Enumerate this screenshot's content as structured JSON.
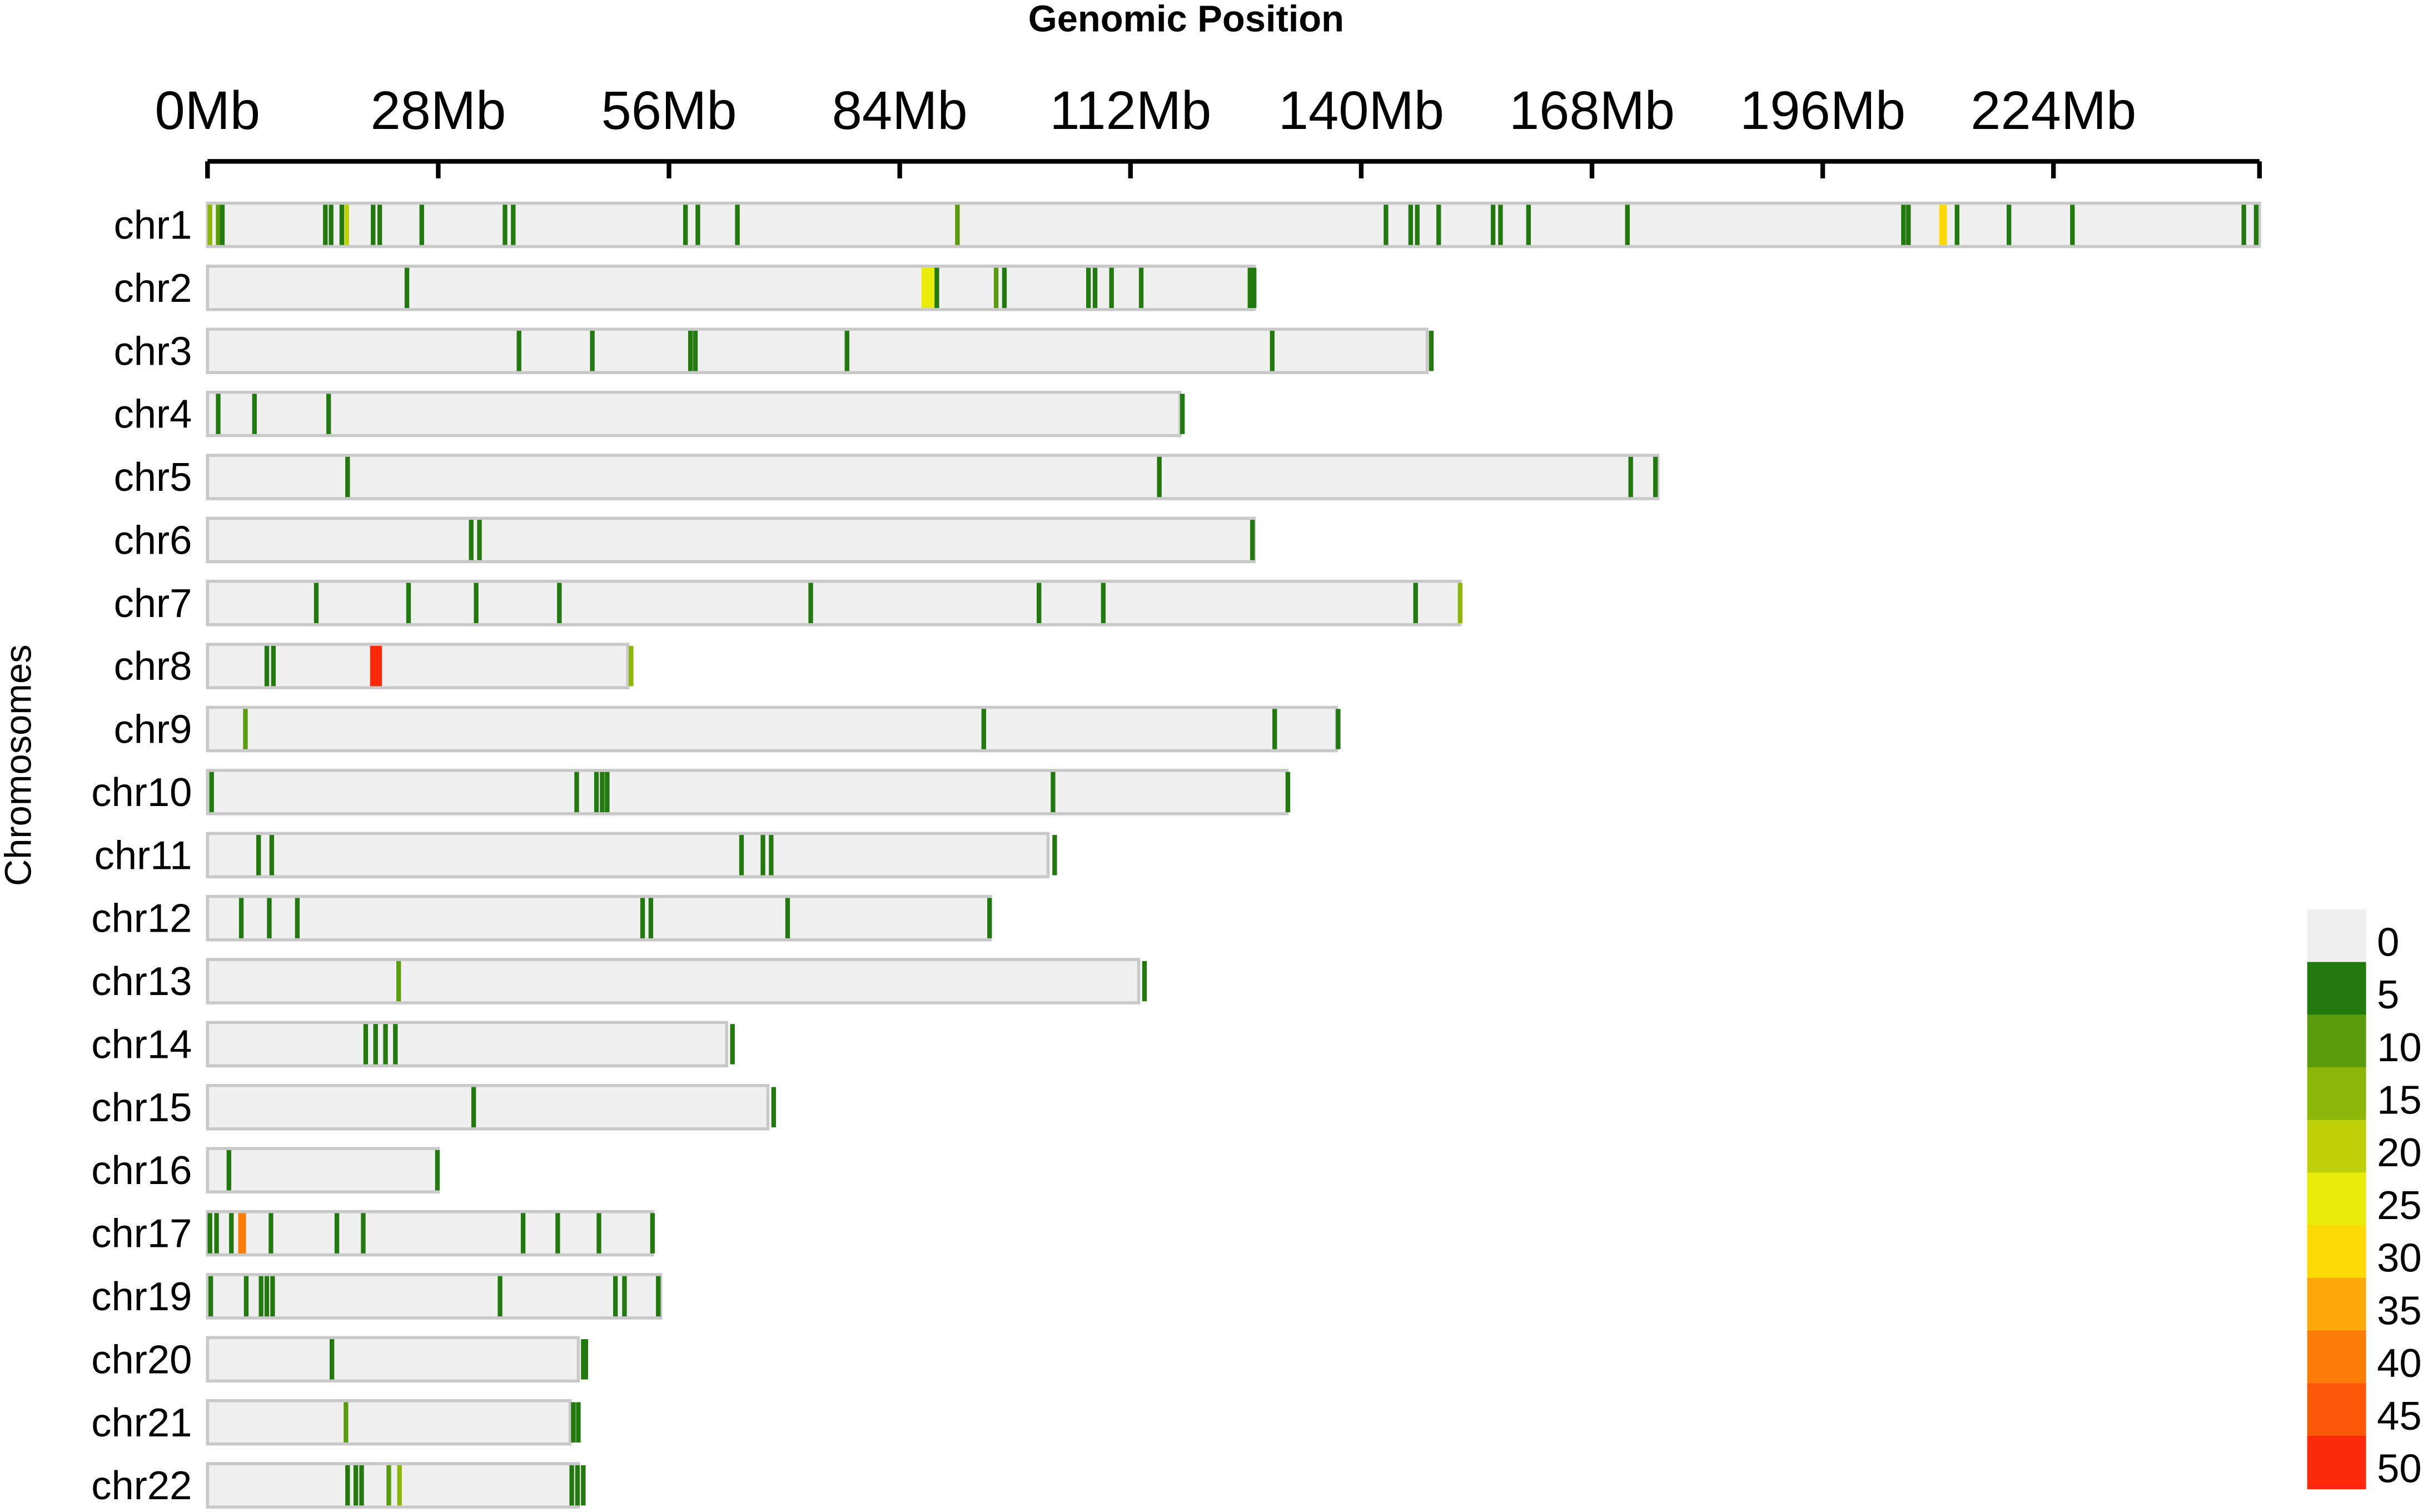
{
  "chart_data": {
    "type": "heatmap",
    "title": "Genomic Position",
    "xlabel": "Genomic Position",
    "ylabel": "Chromosomes",
    "x_unit": "Mb",
    "x_ticks": [
      "0Mb",
      "28Mb",
      "56Mb",
      "84Mb",
      "112Mb",
      "140Mb",
      "168Mb",
      "196Mb",
      "224Mb"
    ],
    "x_tick_values": [
      0,
      28,
      56,
      84,
      112,
      140,
      168,
      196,
      224
    ],
    "xlim": [
      0,
      249
    ],
    "legend": {
      "position": "bottom-right",
      "labels": [
        "0",
        "5",
        "10",
        "15",
        "20",
        "25",
        "30",
        "35",
        "40",
        "45",
        "50"
      ],
      "colors": [
        "#f0f0f0",
        "#227a0e",
        "#5a9c0c",
        "#8cb708",
        "#bdd008",
        "#e8ec08",
        "#fcd902",
        "#fca80a",
        "#fc7c08",
        "#fc5808",
        "#fa2a0a"
      ]
    },
    "chromosomes": [
      {
        "name": "chr1",
        "length": 249,
        "features": [
          [
            0.3,
            15
          ],
          [
            1.3,
            8
          ],
          [
            1.8,
            5
          ],
          [
            14.3,
            5
          ],
          [
            15.0,
            5
          ],
          [
            16.3,
            5
          ],
          [
            16.9,
            20
          ],
          [
            20.1,
            5
          ],
          [
            20.9,
            5
          ],
          [
            26.0,
            5
          ],
          [
            36.1,
            5
          ],
          [
            37.1,
            5
          ],
          [
            58.0,
            5
          ],
          [
            59.5,
            5
          ],
          [
            64.3,
            5
          ],
          [
            91.0,
            10
          ],
          [
            143.0,
            5
          ],
          [
            146.0,
            5
          ],
          [
            146.8,
            5
          ],
          [
            149.4,
            5
          ],
          [
            156.0,
            5
          ],
          [
            156.9,
            5
          ],
          [
            160.3,
            5
          ],
          [
            172.3,
            5
          ],
          [
            205.8,
            5
          ],
          [
            206.4,
            5
          ],
          [
            210.6,
            28
          ],
          [
            212.3,
            5
          ],
          [
            218.6,
            5
          ],
          [
            226.3,
            5
          ],
          [
            247.1,
            5
          ],
          [
            248.6,
            5
          ]
        ]
      },
      {
        "name": "chr2",
        "length": 127,
        "features": [
          [
            24.2,
            5
          ],
          [
            87.1,
            25
          ],
          [
            87.8,
            25
          ],
          [
            88.5,
            5
          ],
          [
            95.7,
            10
          ],
          [
            96.7,
            5
          ],
          [
            106.9,
            5
          ],
          [
            107.7,
            5
          ],
          [
            109.7,
            5
          ],
          [
            113.3,
            5
          ],
          [
            126.5,
            5
          ],
          [
            127.0,
            5
          ]
        ]
      },
      {
        "name": "chr3",
        "length": 148,
        "features": [
          [
            37.8,
            5
          ],
          [
            46.7,
            5
          ],
          [
            58.6,
            5
          ],
          [
            59.2,
            5
          ],
          [
            77.6,
            5
          ],
          [
            129.2,
            5
          ],
          [
            148.5,
            5
          ]
        ]
      },
      {
        "name": "chr4",
        "length": 118,
        "features": [
          [
            1.3,
            5
          ],
          [
            5.7,
            5
          ],
          [
            14.7,
            5
          ],
          [
            118.3,
            5
          ]
        ]
      },
      {
        "name": "chr5",
        "length": 176,
        "features": [
          [
            17.0,
            5
          ],
          [
            115.5,
            5
          ],
          [
            172.7,
            5
          ],
          [
            175.7,
            5
          ]
        ]
      },
      {
        "name": "chr6",
        "length": 127,
        "features": [
          [
            32.0,
            5
          ],
          [
            33.0,
            5
          ],
          [
            126.8,
            5
          ]
        ]
      },
      {
        "name": "chr7",
        "length": 152,
        "features": [
          [
            13.2,
            5
          ],
          [
            24.4,
            5
          ],
          [
            32.6,
            5
          ],
          [
            42.7,
            5
          ],
          [
            73.2,
            5
          ],
          [
            100.9,
            5
          ],
          [
            108.7,
            5
          ],
          [
            146.6,
            5
          ],
          [
            152.0,
            15
          ]
        ]
      },
      {
        "name": "chr8",
        "length": 51,
        "features": [
          [
            7.2,
            5
          ],
          [
            8.0,
            5
          ],
          [
            20.2,
            50
          ],
          [
            20.7,
            50
          ],
          [
            51.4,
            15
          ]
        ]
      },
      {
        "name": "chr9",
        "length": 137,
        "features": [
          [
            4.6,
            10
          ],
          [
            94.2,
            5
          ],
          [
            129.5,
            5
          ],
          [
            137.2,
            5
          ]
        ]
      },
      {
        "name": "chr10",
        "length": 131,
        "features": [
          [
            0.5,
            5
          ],
          [
            44.8,
            5
          ],
          [
            47.2,
            5
          ],
          [
            47.9,
            5
          ],
          [
            48.5,
            5
          ],
          [
            102.6,
            5
          ],
          [
            131.1,
            5
          ]
        ]
      },
      {
        "name": "chr11",
        "length": 102,
        "features": [
          [
            6.2,
            5
          ],
          [
            7.8,
            5
          ],
          [
            64.8,
            5
          ],
          [
            67.4,
            5
          ],
          [
            68.4,
            5
          ],
          [
            102.8,
            5
          ]
        ]
      },
      {
        "name": "chr12",
        "length": 95,
        "features": [
          [
            4.1,
            5
          ],
          [
            7.5,
            5
          ],
          [
            10.9,
            5
          ],
          [
            52.8,
            5
          ],
          [
            53.8,
            5
          ],
          [
            70.4,
            5
          ],
          [
            94.9,
            5
          ]
        ]
      },
      {
        "name": "chr13",
        "length": 113,
        "features": [
          [
            23.2,
            10
          ],
          [
            113.7,
            5
          ]
        ]
      },
      {
        "name": "chr14",
        "length": 63,
        "features": [
          [
            19.2,
            5
          ],
          [
            20.4,
            5
          ],
          [
            21.6,
            5
          ],
          [
            22.8,
            5
          ],
          [
            63.7,
            5
          ]
        ]
      },
      {
        "name": "chr15",
        "length": 68,
        "features": [
          [
            32.3,
            5
          ],
          [
            68.7,
            5
          ]
        ]
      },
      {
        "name": "chr16",
        "length": 28,
        "features": [
          [
            2.6,
            5
          ],
          [
            27.9,
            5
          ]
        ]
      },
      {
        "name": "chr17",
        "length": 54,
        "features": [
          [
            0.3,
            5
          ],
          [
            1.1,
            5
          ],
          [
            2.9,
            5
          ],
          [
            4.2,
            40
          ],
          [
            7.7,
            5
          ],
          [
            15.7,
            5
          ],
          [
            18.9,
            5
          ],
          [
            38.3,
            5
          ],
          [
            42.5,
            5
          ],
          [
            47.5,
            5
          ],
          [
            54.0,
            5
          ]
        ]
      },
      {
        "name": "chr19",
        "length": 55,
        "features": [
          [
            0.4,
            5
          ],
          [
            4.7,
            5
          ],
          [
            6.5,
            5
          ],
          [
            7.2,
            5
          ],
          [
            7.9,
            5
          ],
          [
            35.5,
            5
          ],
          [
            49.5,
            5
          ],
          [
            50.6,
            5
          ],
          [
            54.7,
            5
          ]
        ]
      },
      {
        "name": "chr20",
        "length": 45,
        "features": [
          [
            15.1,
            5
          ],
          [
            45.6,
            5
          ],
          [
            45.9,
            5
          ]
        ]
      },
      {
        "name": "chr21",
        "length": 44,
        "features": [
          [
            16.8,
            10
          ],
          [
            44.4,
            5
          ],
          [
            45.0,
            5
          ]
        ]
      },
      {
        "name": "chr22",
        "length": 45,
        "features": [
          [
            17.0,
            5
          ],
          [
            18.0,
            5
          ],
          [
            18.7,
            5
          ],
          [
            22.0,
            10
          ],
          [
            23.3,
            15
          ],
          [
            44.2,
            5
          ],
          [
            44.9,
            5
          ],
          [
            45.6,
            5
          ]
        ]
      }
    ]
  }
}
